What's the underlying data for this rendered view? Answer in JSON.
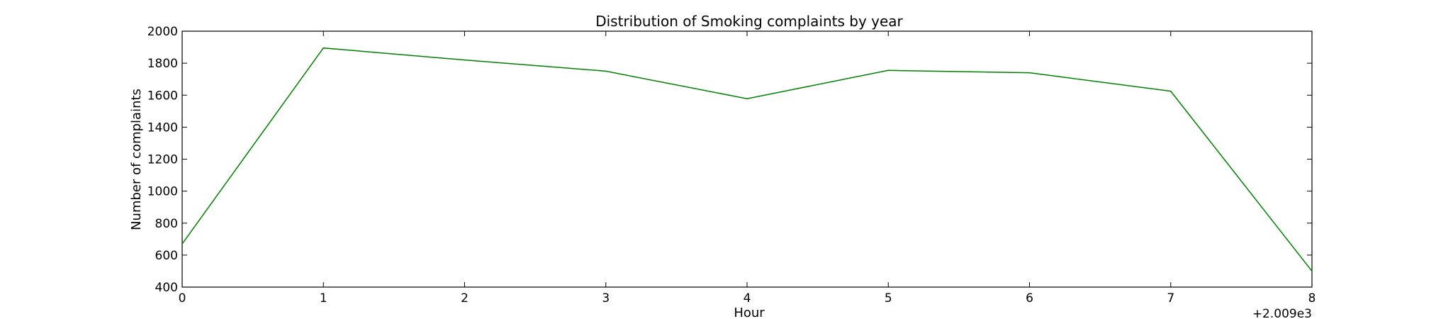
{
  "chart_data": {
    "type": "line",
    "title": "Distribution of  Smoking complaints by year",
    "xlabel": "Hour",
    "ylabel": "Number of complaints",
    "x_offset_label": "+2.009e3",
    "x": [
      0,
      1,
      2,
      3,
      4,
      5,
      6,
      7,
      8
    ],
    "series": [
      {
        "color": "#008000",
        "values": [
          670,
          1895,
          1820,
          1750,
          1578,
          1755,
          1740,
          1625,
          500
        ]
      }
    ],
    "xlim": [
      0,
      8
    ],
    "ylim": [
      400,
      2000
    ],
    "xticks": [
      0,
      1,
      2,
      3,
      4,
      5,
      6,
      7,
      8
    ],
    "yticks": [
      400,
      600,
      800,
      1000,
      1200,
      1400,
      1600,
      1800,
      2000
    ],
    "grid": false
  }
}
